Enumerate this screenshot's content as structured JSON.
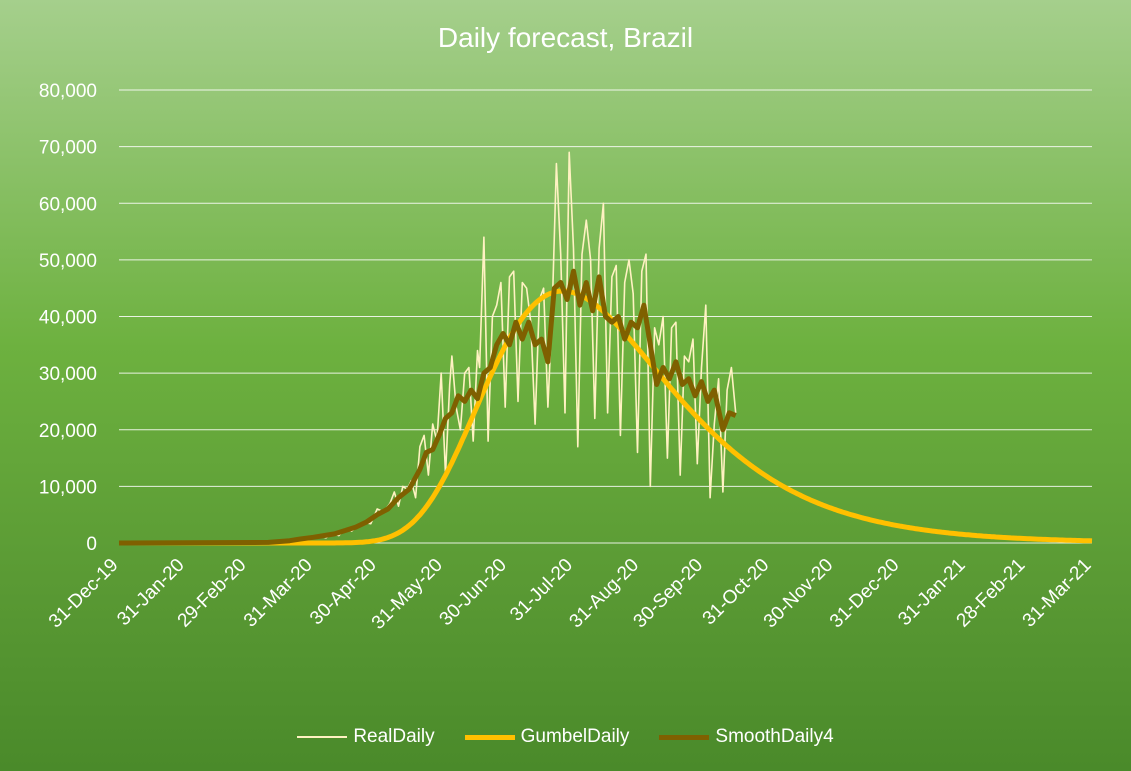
{
  "chart_data": {
    "type": "line",
    "title": "Daily forecast, Brazil",
    "xlabel": "",
    "ylabel": "",
    "x_axis": {
      "type": "date",
      "range": [
        "2019-12-31",
        "2021-03-31"
      ],
      "tick_labels": [
        "31-Dec-19",
        "31-Jan-20",
        "29-Feb-20",
        "31-Mar-20",
        "30-Apr-20",
        "31-May-20",
        "30-Jun-20",
        "31-Jul-20",
        "31-Aug-20",
        "30-Sep-20",
        "31-Oct-20",
        "30-Nov-20",
        "31-Dec-20",
        "31-Jan-21",
        "28-Feb-21",
        "31-Mar-21"
      ]
    },
    "y_axis": {
      "range": [
        0,
        80000
      ],
      "tick_values": [
        0,
        10000,
        20000,
        30000,
        40000,
        50000,
        60000,
        70000,
        80000
      ],
      "tick_labels": [
        "0",
        "10,000",
        "20,000",
        "30,000",
        "40,000",
        "50,000",
        "60,000",
        "70,000",
        "80,000"
      ]
    },
    "grid": true,
    "legend_position": "bottom",
    "series": [
      {
        "name": "RealDaily",
        "color": "#fff2c2",
        "points": [
          [
            "2019-12-31",
            0
          ],
          [
            "2020-02-25",
            0
          ],
          [
            "2020-03-10",
            50
          ],
          [
            "2020-03-15",
            200
          ],
          [
            "2020-03-20",
            400
          ],
          [
            "2020-03-25",
            500
          ],
          [
            "2020-03-28",
            700
          ],
          [
            "2020-03-31",
            1000
          ],
          [
            "2020-04-03",
            1200
          ],
          [
            "2020-04-06",
            900
          ],
          [
            "2020-04-09",
            1700
          ],
          [
            "2020-04-12",
            1300
          ],
          [
            "2020-04-15",
            2500
          ],
          [
            "2020-04-18",
            2100
          ],
          [
            "2020-04-21",
            3000
          ],
          [
            "2020-04-24",
            3600
          ],
          [
            "2020-04-27",
            3400
          ],
          [
            "2020-04-30",
            6000
          ],
          [
            "2020-05-03",
            5500
          ],
          [
            "2020-05-06",
            7000
          ],
          [
            "2020-05-08",
            9000
          ],
          [
            "2020-05-10",
            6500
          ],
          [
            "2020-05-12",
            10000
          ],
          [
            "2020-05-14",
            9500
          ],
          [
            "2020-05-16",
            11000
          ],
          [
            "2020-05-18",
            8000
          ],
          [
            "2020-05-20",
            17000
          ],
          [
            "2020-05-22",
            19000
          ],
          [
            "2020-05-24",
            12000
          ],
          [
            "2020-05-26",
            21000
          ],
          [
            "2020-05-28",
            18000
          ],
          [
            "2020-05-30",
            30000
          ],
          [
            "2020-06-01",
            12000
          ],
          [
            "2020-06-03",
            28000
          ],
          [
            "2020-06-04",
            33000
          ],
          [
            "2020-06-06",
            24000
          ],
          [
            "2020-06-08",
            20000
          ],
          [
            "2020-06-10",
            30000
          ],
          [
            "2020-06-12",
            31000
          ],
          [
            "2020-06-14",
            18000
          ],
          [
            "2020-06-16",
            34000
          ],
          [
            "2020-06-17",
            31000
          ],
          [
            "2020-06-19",
            54000
          ],
          [
            "2020-06-21",
            18000
          ],
          [
            "2020-06-23",
            40000
          ],
          [
            "2020-06-25",
            42000
          ],
          [
            "2020-06-27",
            46000
          ],
          [
            "2020-06-29",
            24000
          ],
          [
            "2020-07-01",
            47000
          ],
          [
            "2020-07-03",
            48000
          ],
          [
            "2020-07-05",
            25000
          ],
          [
            "2020-07-07",
            46000
          ],
          [
            "2020-07-09",
            45000
          ],
          [
            "2020-07-11",
            39000
          ],
          [
            "2020-07-13",
            21000
          ],
          [
            "2020-07-15",
            43000
          ],
          [
            "2020-07-17",
            45000
          ],
          [
            "2020-07-19",
            24000
          ],
          [
            "2020-07-21",
            41000
          ],
          [
            "2020-07-23",
            67000
          ],
          [
            "2020-07-25",
            51000
          ],
          [
            "2020-07-27",
            23000
          ],
          [
            "2020-07-29",
            69000
          ],
          [
            "2020-07-31",
            52000
          ],
          [
            "2020-08-02",
            17000
          ],
          [
            "2020-08-04",
            51000
          ],
          [
            "2020-08-06",
            57000
          ],
          [
            "2020-08-08",
            50000
          ],
          [
            "2020-08-10",
            22000
          ],
          [
            "2020-08-12",
            52000
          ],
          [
            "2020-08-14",
            60000
          ],
          [
            "2020-08-16",
            23000
          ],
          [
            "2020-08-18",
            47000
          ],
          [
            "2020-08-20",
            49000
          ],
          [
            "2020-08-22",
            19000
          ],
          [
            "2020-08-24",
            46000
          ],
          [
            "2020-08-26",
            50000
          ],
          [
            "2020-08-28",
            44000
          ],
          [
            "2020-08-30",
            16000
          ],
          [
            "2020-09-01",
            48000
          ],
          [
            "2020-09-03",
            51000
          ],
          [
            "2020-09-05",
            10000
          ],
          [
            "2020-09-07",
            38000
          ],
          [
            "2020-09-09",
            35000
          ],
          [
            "2020-09-11",
            40000
          ],
          [
            "2020-09-13",
            15000
          ],
          [
            "2020-09-15",
            38000
          ],
          [
            "2020-09-17",
            39000
          ],
          [
            "2020-09-19",
            12000
          ],
          [
            "2020-09-21",
            33000
          ],
          [
            "2020-09-23",
            32000
          ],
          [
            "2020-09-25",
            36000
          ],
          [
            "2020-09-27",
            14000
          ],
          [
            "2020-09-29",
            31000
          ],
          [
            "2020-10-01",
            42000
          ],
          [
            "2020-10-03",
            8000
          ],
          [
            "2020-10-05",
            21000
          ],
          [
            "2020-10-07",
            29000
          ],
          [
            "2020-10-09",
            9000
          ],
          [
            "2020-10-11",
            27000
          ],
          [
            "2020-10-13",
            31000
          ],
          [
            "2020-10-15",
            23000
          ]
        ]
      },
      {
        "name": "GumbelDaily",
        "color": "#ffc000",
        "function": {
          "mode": "2020-07-26",
          "scale_days": 43,
          "peak": 44500,
          "x_end": "2021-03-31"
        }
      },
      {
        "name": "SmoothDaily4",
        "color": "#7f6000",
        "points": [
          [
            "2019-12-31",
            0
          ],
          [
            "2020-03-10",
            100
          ],
          [
            "2020-03-20",
            400
          ],
          [
            "2020-03-25",
            700
          ],
          [
            "2020-03-31",
            1000
          ],
          [
            "2020-04-05",
            1300
          ],
          [
            "2020-04-10",
            1600
          ],
          [
            "2020-04-15",
            2200
          ],
          [
            "2020-04-20",
            2800
          ],
          [
            "2020-04-25",
            3700
          ],
          [
            "2020-04-30",
            5000
          ],
          [
            "2020-05-05",
            6000
          ],
          [
            "2020-05-10",
            8000
          ],
          [
            "2020-05-15",
            9500
          ],
          [
            "2020-05-20",
            13000
          ],
          [
            "2020-05-23",
            16000
          ],
          [
            "2020-05-26",
            16500
          ],
          [
            "2020-05-29",
            19000
          ],
          [
            "2020-06-01",
            22000
          ],
          [
            "2020-06-04",
            23000
          ],
          [
            "2020-06-07",
            26000
          ],
          [
            "2020-06-10",
            25000
          ],
          [
            "2020-06-13",
            27000
          ],
          [
            "2020-06-16",
            25500
          ],
          [
            "2020-06-19",
            30000
          ],
          [
            "2020-06-22",
            31000
          ],
          [
            "2020-06-25",
            35000
          ],
          [
            "2020-06-28",
            37000
          ],
          [
            "2020-07-01",
            35000
          ],
          [
            "2020-07-04",
            39000
          ],
          [
            "2020-07-07",
            36000
          ],
          [
            "2020-07-10",
            39000
          ],
          [
            "2020-07-13",
            35000
          ],
          [
            "2020-07-16",
            36000
          ],
          [
            "2020-07-19",
            32000
          ],
          [
            "2020-07-22",
            45000
          ],
          [
            "2020-07-25",
            46000
          ],
          [
            "2020-07-28",
            43000
          ],
          [
            "2020-07-31",
            48000
          ],
          [
            "2020-08-03",
            42000
          ],
          [
            "2020-08-06",
            46000
          ],
          [
            "2020-08-09",
            41000
          ],
          [
            "2020-08-12",
            47000
          ],
          [
            "2020-08-15",
            40000
          ],
          [
            "2020-08-18",
            39000
          ],
          [
            "2020-08-21",
            40000
          ],
          [
            "2020-08-24",
            36000
          ],
          [
            "2020-08-27",
            39000
          ],
          [
            "2020-08-30",
            38000
          ],
          [
            "2020-09-02",
            42000
          ],
          [
            "2020-09-05",
            35000
          ],
          [
            "2020-09-08",
            28000
          ],
          [
            "2020-09-11",
            31000
          ],
          [
            "2020-09-14",
            29000
          ],
          [
            "2020-09-17",
            32000
          ],
          [
            "2020-09-20",
            28000
          ],
          [
            "2020-09-23",
            29000
          ],
          [
            "2020-09-26",
            26000
          ],
          [
            "2020-09-29",
            28500
          ],
          [
            "2020-10-02",
            25000
          ],
          [
            "2020-10-05",
            27000
          ],
          [
            "2020-10-09",
            20000
          ],
          [
            "2020-10-12",
            23000
          ],
          [
            "2020-10-15",
            22500
          ]
        ]
      }
    ]
  }
}
